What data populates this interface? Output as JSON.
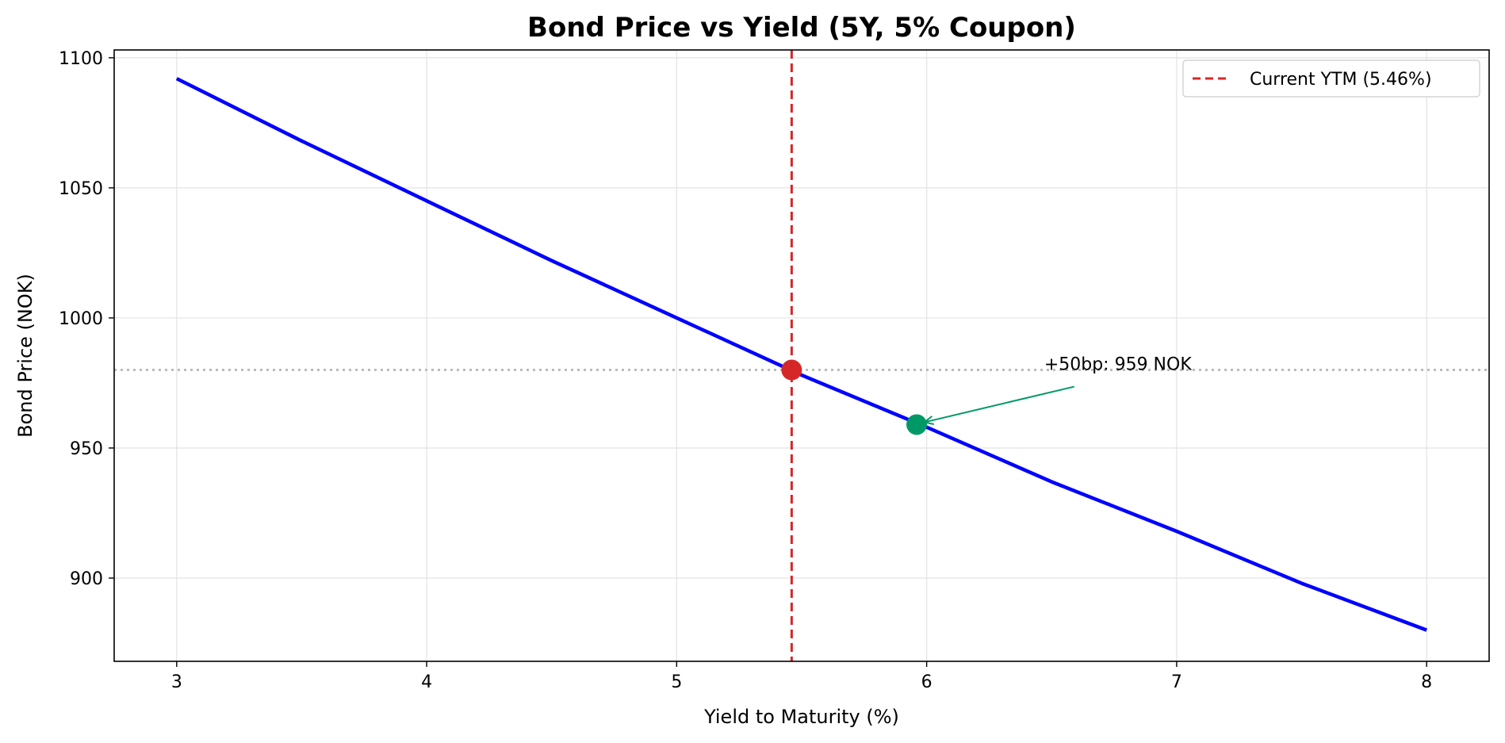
{
  "chart_data": {
    "type": "line",
    "title": "Bond Price vs Yield (5Y, 5% Coupon)",
    "xlabel": "Yield to Maturity (%)",
    "ylabel": "Bond Price (NOK)",
    "xlim": [
      2.75,
      8.25
    ],
    "ylim": [
      868,
      1103
    ],
    "xticks": [
      3,
      4,
      5,
      6,
      7,
      8
    ],
    "yticks": [
      900,
      950,
      1000,
      1050,
      1100
    ],
    "grid": true,
    "legend_position": "top-right",
    "series": [
      {
        "color": "#0000ff",
        "x": [
          3,
          3.5,
          4,
          4.5,
          5,
          5.5,
          6,
          6.5,
          7,
          7.5,
          8
        ],
        "y": [
          1092,
          1068,
          1045,
          1022,
          1000,
          978,
          958,
          937,
          918,
          898,
          880
        ]
      }
    ],
    "reference_lines": [
      {
        "orientation": "vertical",
        "x": 5.46,
        "style": "dashed",
        "color": "#d62728",
        "label": "Current YTM (5.46%)"
      },
      {
        "orientation": "horizontal",
        "y": 980,
        "style": "dotted",
        "color": "#bbbbbb"
      }
    ],
    "markers": [
      {
        "x": 5.46,
        "y": 980,
        "color": "#d62728"
      },
      {
        "x": 5.96,
        "y": 959,
        "color": "#009966"
      }
    ],
    "annotation": {
      "text": "+50bp: 959 NOK",
      "text_x": 6.47,
      "text_y": 980,
      "point_x": 5.96,
      "point_y": 959,
      "color": "#009966"
    },
    "legend": [
      {
        "label": "Current YTM (5.46%)",
        "color": "#d62728",
        "style": "dashed"
      }
    ]
  }
}
